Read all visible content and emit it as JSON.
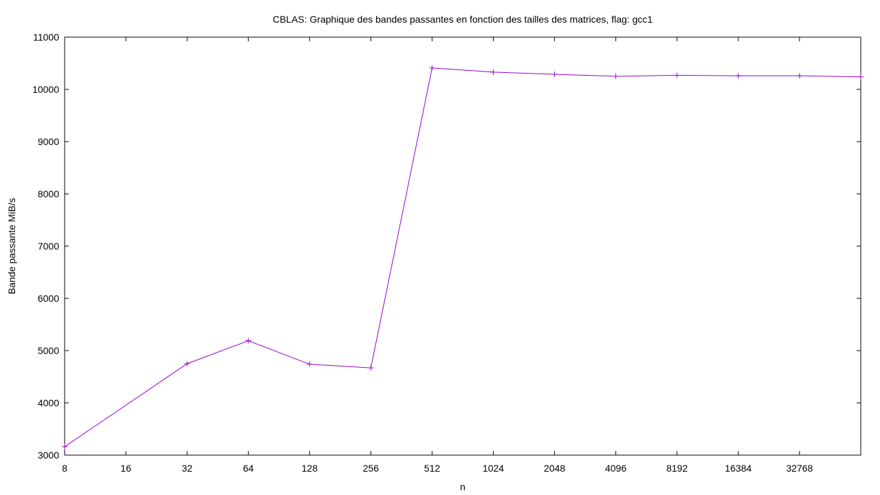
{
  "chart_data": {
    "type": "line",
    "title": "CBLAS: Graphique des bandes passantes en fonction des tailles des matrices, flag: gcc1",
    "xlabel": "n",
    "ylabel": "Bande passante MiB/s",
    "x_scale": "log2",
    "x_tick_labels": [
      "8",
      "16",
      "32",
      "64",
      "128",
      "256",
      "512",
      "1024",
      "2048",
      "4096",
      "8192",
      "16384",
      "32768"
    ],
    "x_tick_values": [
      8,
      16,
      32,
      64,
      128,
      256,
      512,
      1024,
      2048,
      4096,
      8192,
      16384,
      32768
    ],
    "xlim": [
      8,
      65536
    ],
    "ylim": [
      3000,
      11000
    ],
    "y_ticks": [
      3000,
      4000,
      5000,
      6000,
      7000,
      8000,
      9000,
      10000,
      11000
    ],
    "grid": false,
    "legend": "none",
    "series": [
      {
        "name": "gcc1",
        "color": "#9400d3",
        "marker": "plus",
        "x": [
          8,
          32,
          64,
          128,
          256,
          512,
          1024,
          2048,
          4096,
          8192,
          16384,
          32768,
          65536
        ],
        "values": [
          3160,
          4750,
          5190,
          4740,
          4670,
          10410,
          10330,
          10290,
          10250,
          10270,
          10260,
          10260,
          10240
        ]
      }
    ]
  }
}
